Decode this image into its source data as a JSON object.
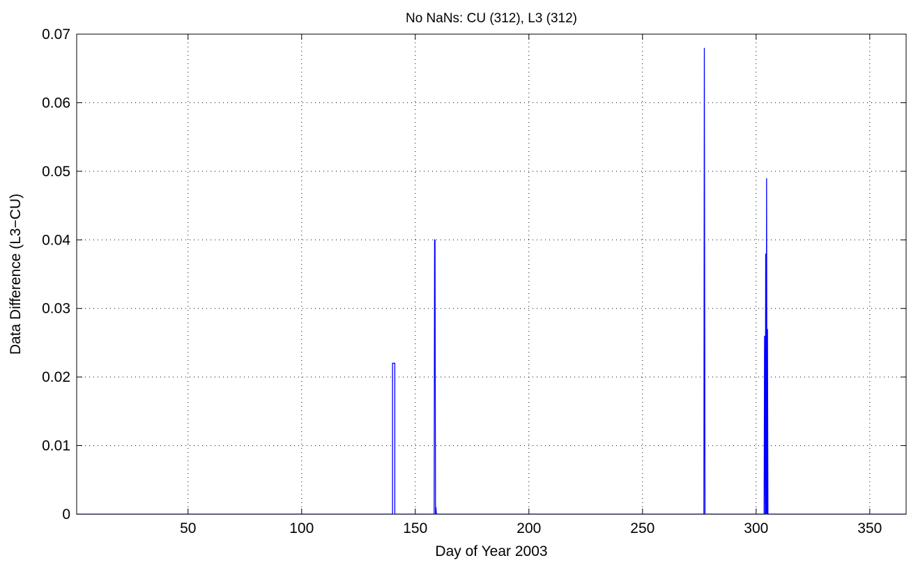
{
  "chart_data": {
    "type": "line",
    "title": "No NaNs:  CU (312), L3 (312)",
    "xlabel": "Day of Year 2003",
    "ylabel": "Data Difference (L3−CU)",
    "xlim": [
      1,
      366
    ],
    "ylim": [
      0,
      0.07
    ],
    "xticks": [
      50,
      100,
      150,
      200,
      250,
      300,
      350
    ],
    "yticks": [
      0,
      0.01,
      0.02,
      0.03,
      0.04,
      0.05,
      0.06,
      0.07
    ],
    "xtick_labels": [
      "50",
      "100",
      "150",
      "200",
      "250",
      "300",
      "350"
    ],
    "ytick_labels": [
      "0",
      "0.01",
      "0.02",
      "0.03",
      "0.04",
      "0.05",
      "0.06",
      "0.07"
    ],
    "grid": true,
    "series": [
      {
        "color": "#0000ff",
        "x": [
          1,
          140,
          140,
          141,
          141,
          158.3,
          158.5,
          158.7,
          158.9,
          159.1,
          159.3,
          277,
          277.2,
          277.5,
          303.5,
          303.7,
          304,
          304.2,
          304.4,
          304.6,
          304.8,
          305,
          305.2,
          366
        ],
        "y": [
          0,
          0,
          0.022,
          0.022,
          0,
          0,
          0.04,
          0.04,
          0,
          0.001,
          0,
          0,
          0.068,
          0,
          0,
          0.026,
          0,
          0.038,
          0,
          0.049,
          0,
          0.027,
          0,
          0
        ]
      }
    ]
  }
}
